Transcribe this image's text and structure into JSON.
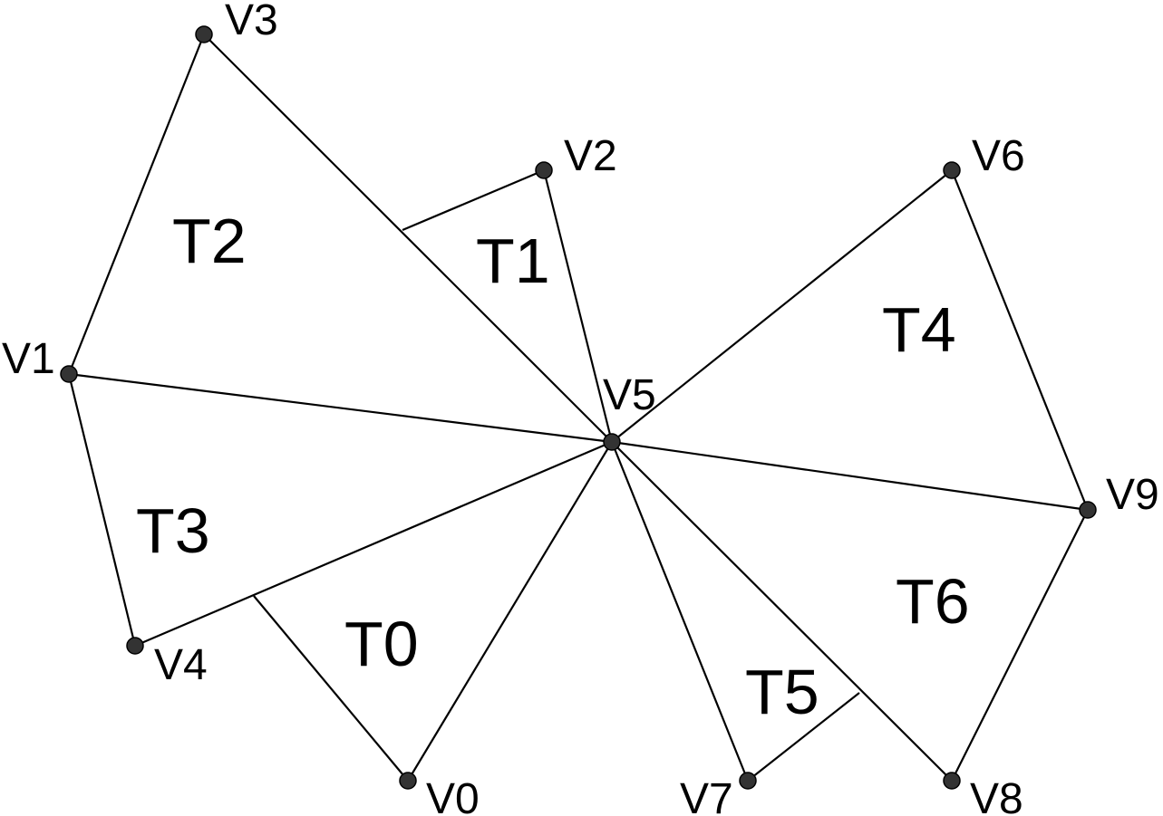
{
  "diagram": {
    "vertices": [
      {
        "id": "V0",
        "label": "V0"
      },
      {
        "id": "V1",
        "label": "V1"
      },
      {
        "id": "V2",
        "label": "V2"
      },
      {
        "id": "V3",
        "label": "V3"
      },
      {
        "id": "V4",
        "label": "V4"
      },
      {
        "id": "V5",
        "label": "V5"
      },
      {
        "id": "V6",
        "label": "V6"
      },
      {
        "id": "V7",
        "label": "V7"
      },
      {
        "id": "V8",
        "label": "V8"
      },
      {
        "id": "V9",
        "label": "V9"
      }
    ],
    "triangles": [
      {
        "id": "T0",
        "label": "T0"
      },
      {
        "id": "T1",
        "label": "T1"
      },
      {
        "id": "T2",
        "label": "T2"
      },
      {
        "id": "T3",
        "label": "T3"
      },
      {
        "id": "T4",
        "label": "T4"
      },
      {
        "id": "T5",
        "label": "T5"
      },
      {
        "id": "T6",
        "label": "T6"
      }
    ],
    "colors": {
      "edge": "#000000",
      "vertex": "#333333",
      "background": "#ffffff"
    }
  }
}
